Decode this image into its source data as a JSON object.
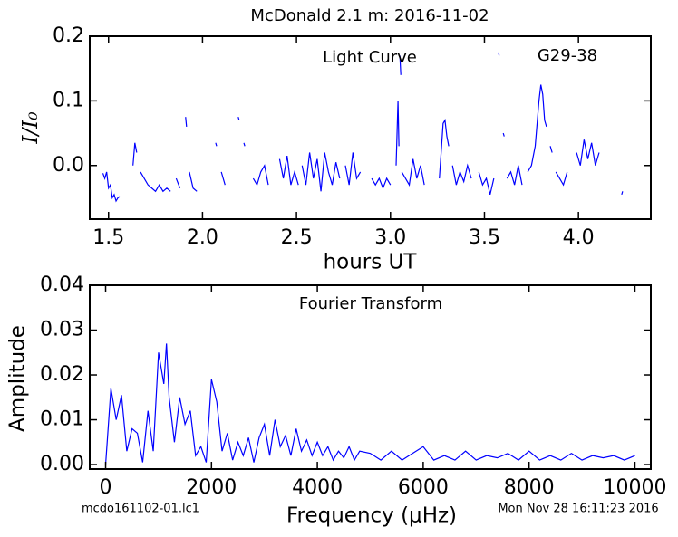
{
  "chart_data": [
    {
      "type": "line",
      "title": "McDonald 2.1 m:  2016-11-02",
      "annotations": [
        "Light Curve",
        "G29-38"
      ],
      "x_label": "hours UT",
      "y_label": "I/I₀",
      "xlim": [
        1.4,
        4.385
      ],
      "ylim": [
        -0.083,
        0.2
      ],
      "xticks": [
        1.5,
        {
          "value": 2,
          "label": "2.0"
        },
        2.5,
        {
          "value": 3,
          "label": "3.0"
        },
        3.5,
        {
          "value": 4,
          "label": "4.0"
        }
      ],
      "yticks": [
        {
          "value": 0,
          "label": "0.0"
        },
        0.1,
        0.2
      ],
      "series": [
        {
          "name": "Light Curve",
          "color": "#0000ff",
          "x": [
            1.47,
            1.48,
            1.49,
            1.5,
            1.51,
            1.52,
            1.53,
            1.54,
            1.55,
            1.56,
            1.57,
            1.63,
            1.64,
            1.65,
            1.66,
            1.67,
            1.69,
            1.71,
            1.73,
            1.75,
            1.77,
            1.79,
            1.81,
            1.83,
            1.84,
            1.86,
            1.88,
            1.89,
            1.91,
            1.915,
            1.92,
            1.93,
            1.95,
            1.97,
            1.98,
            2.07,
            2.075,
            2.08,
            2.1,
            2.12,
            2.13,
            2.19,
            2.195,
            2.2,
            2.22,
            2.225,
            2.23,
            2.27,
            2.29,
            2.31,
            2.33,
            2.35,
            2.36,
            2.41,
            2.43,
            2.45,
            2.47,
            2.49,
            2.51,
            2.52,
            2.53,
            2.55,
            2.57,
            2.59,
            2.61,
            2.63,
            2.65,
            2.67,
            2.69,
            2.71,
            2.73,
            2.74,
            2.76,
            2.78,
            2.8,
            2.82,
            2.84,
            2.85,
            2.9,
            2.92,
            2.94,
            2.96,
            2.98,
            3.0,
            3.01,
            3.03,
            3.04,
            3.045,
            3.047,
            3.05,
            3.055,
            3.057,
            3.06,
            3.08,
            3.1,
            3.12,
            3.14,
            3.16,
            3.18,
            3.19,
            3.26,
            3.28,
            3.29,
            3.3,
            3.31,
            3.32,
            3.33,
            3.35,
            3.37,
            3.39,
            3.41,
            3.43,
            3.44,
            3.47,
            3.49,
            3.51,
            3.53,
            3.55,
            3.56,
            3.575,
            3.578,
            3.579,
            3.6,
            3.605,
            3.607,
            3.62,
            3.64,
            3.66,
            3.68,
            3.7,
            3.71,
            3.73,
            3.75,
            3.77,
            3.79,
            3.8,
            3.81,
            3.82,
            3.83,
            3.84,
            3.85,
            3.86,
            3.865,
            3.88,
            3.9,
            3.92,
            3.94,
            3.95,
            3.99,
            4.01,
            4.03,
            4.05,
            4.07,
            4.09,
            4.11,
            4.12,
            4.23,
            4.235
          ],
          "values": [
            -0.012,
            -0.02,
            -0.01,
            -0.035,
            -0.03,
            -0.05,
            -0.045,
            -0.055,
            -0.05,
            -0.048,
            null,
            0.0,
            0.035,
            0.02,
            null,
            -0.01,
            -0.02,
            -0.03,
            -0.035,
            -0.04,
            -0.03,
            -0.04,
            -0.035,
            -0.04,
            null,
            -0.02,
            -0.035,
            null,
            0.075,
            0.06,
            null,
            -0.01,
            -0.035,
            -0.04,
            null,
            0.035,
            0.03,
            null,
            -0.01,
            -0.03,
            null,
            0.075,
            0.07,
            null,
            0.035,
            0.03,
            null,
            -0.02,
            -0.03,
            -0.01,
            0.0,
            -0.03,
            null,
            0.01,
            -0.02,
            0.015,
            -0.03,
            -0.01,
            -0.03,
            null,
            0.0,
            -0.03,
            0.02,
            -0.02,
            0.01,
            -0.04,
            0.02,
            -0.01,
            -0.03,
            0.005,
            -0.02,
            null,
            0.0,
            -0.03,
            0.02,
            -0.02,
            -0.01,
            null,
            -0.02,
            -0.03,
            -0.02,
            -0.035,
            -0.02,
            -0.03,
            null,
            0.0,
            0.1,
            0.03,
            null,
            0.17,
            0.14,
            null,
            -0.01,
            -0.02,
            -0.03,
            0.01,
            -0.02,
            0.0,
            -0.03,
            null,
            -0.02,
            0.065,
            0.07,
            0.045,
            0.03,
            null,
            0.0,
            -0.03,
            -0.01,
            -0.025,
            0.0,
            -0.02,
            null,
            -0.01,
            -0.03,
            -0.02,
            -0.045,
            -0.02,
            null,
            0.175,
            0.17,
            null,
            0.05,
            0.045,
            null,
            -0.02,
            -0.01,
            -0.03,
            0.0,
            -0.03,
            null,
            -0.01,
            0.0,
            0.03,
            0.1,
            0.125,
            0.11,
            0.07,
            0.06,
            null,
            0.03,
            0.02,
            null,
            -0.01,
            -0.02,
            -0.03,
            -0.01,
            null,
            0.02,
            0.0,
            0.04,
            0.01,
            0.035,
            0.0,
            0.02,
            null,
            -0.045,
            -0.04
          ]
        }
      ]
    },
    {
      "type": "line",
      "annotations": [
        "Fourier Transform"
      ],
      "x_label": "Frequency (μHz)",
      "y_label": "Amplitude",
      "footer_left": "mcdo161102-01.lc1",
      "footer_right": "Mon Nov 28 16:11:23 2016",
      "xlim": [
        -300,
        10300
      ],
      "ylim": [
        -0.001,
        0.04
      ],
      "xticks": [
        0,
        2000,
        4000,
        6000,
        8000,
        10000
      ],
      "yticks": [
        {
          "value": 0,
          "label": "0.00"
        },
        0.01,
        0.02,
        0.03,
        0.04
      ],
      "series": [
        {
          "name": "Fourier Transform",
          "color": "#0000ff",
          "x": [
            0,
            100,
            200,
            300,
            400,
            500,
            600,
            700,
            800,
            900,
            1000,
            1100,
            1150,
            1200,
            1300,
            1400,
            1500,
            1600,
            1700,
            1800,
            1900,
            2000,
            2100,
            2200,
            2300,
            2400,
            2500,
            2600,
            2700,
            2800,
            2900,
            3000,
            3100,
            3200,
            3300,
            3400,
            3500,
            3600,
            3700,
            3800,
            3900,
            4000,
            4100,
            4200,
            4300,
            4400,
            4500,
            4600,
            4700,
            4800,
            5000,
            5200,
            5400,
            5600,
            5800,
            6000,
            6200,
            6400,
            6600,
            6800,
            7000,
            7200,
            7400,
            7600,
            7800,
            8000,
            8200,
            8400,
            8600,
            8800,
            9000,
            9200,
            9400,
            9600,
            9800,
            10000
          ],
          "values": [
            0.0,
            0.017,
            0.01,
            0.0155,
            0.003,
            0.008,
            0.007,
            0.0005,
            0.012,
            0.003,
            0.025,
            0.018,
            0.027,
            0.015,
            0.005,
            0.015,
            0.009,
            0.012,
            0.002,
            0.004,
            0.0005,
            0.019,
            0.014,
            0.003,
            0.007,
            0.001,
            0.005,
            0.002,
            0.006,
            0.0005,
            0.006,
            0.009,
            0.002,
            0.01,
            0.004,
            0.0065,
            0.002,
            0.008,
            0.003,
            0.0055,
            0.002,
            0.005,
            0.002,
            0.004,
            0.001,
            0.003,
            0.0015,
            0.004,
            0.001,
            0.003,
            0.0025,
            0.001,
            0.003,
            0.001,
            0.0025,
            0.004,
            0.001,
            0.002,
            0.001,
            0.003,
            0.001,
            0.002,
            0.0015,
            0.0025,
            0.001,
            0.003,
            0.001,
            0.002,
            0.001,
            0.0025,
            0.001,
            0.002,
            0.0015,
            0.002,
            0.001,
            0.002
          ]
        }
      ]
    }
  ]
}
